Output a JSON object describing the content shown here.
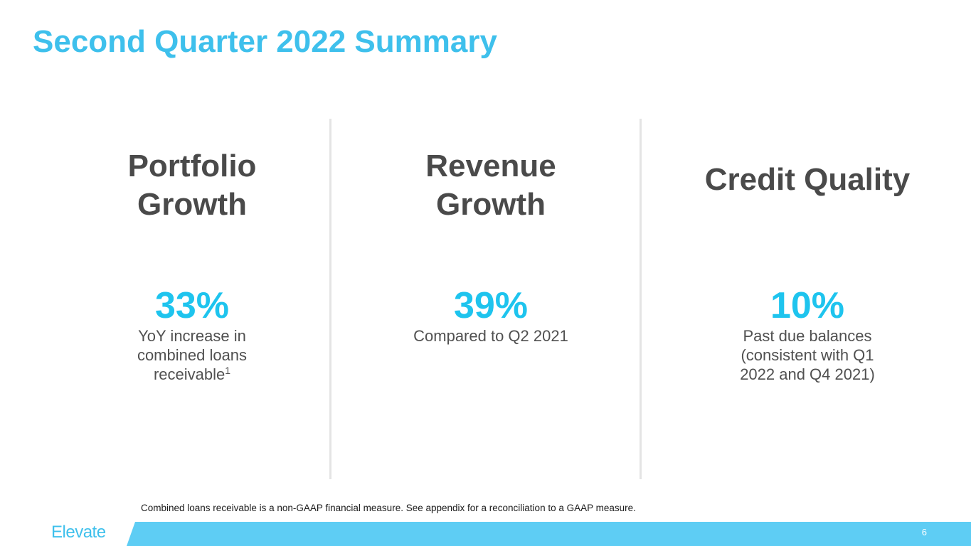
{
  "slide": {
    "title": "Second Quarter 2022 Summary",
    "footnote": "Combined loans receivable is a non-GAAP financial measure. See appendix for a reconciliation to a GAAP measure.",
    "logo_text": "Elevate",
    "page_number": "6",
    "colors": {
      "title": "#3ec0ec",
      "stat": "#1ec4ee",
      "heading": "#4a4a4a",
      "footer_bar": "#5ecdf4"
    }
  },
  "columns": [
    {
      "heading_line1": "Portfolio",
      "heading_line2": "Growth",
      "stat": "33%",
      "desc_line1": "YoY increase in",
      "desc_line2": "combined loans",
      "desc_line3": "receivable",
      "footnote_ref": "1"
    },
    {
      "heading_line1": "Revenue",
      "heading_line2": "Growth",
      "stat": "39%",
      "desc_line1": "Compared to Q2 2021"
    },
    {
      "heading": "Credit Quality",
      "stat": "10%",
      "desc_line1": "Past due balances",
      "desc_line2": "(consistent with Q1",
      "desc_line3": "2022 and Q4 2021)"
    }
  ]
}
